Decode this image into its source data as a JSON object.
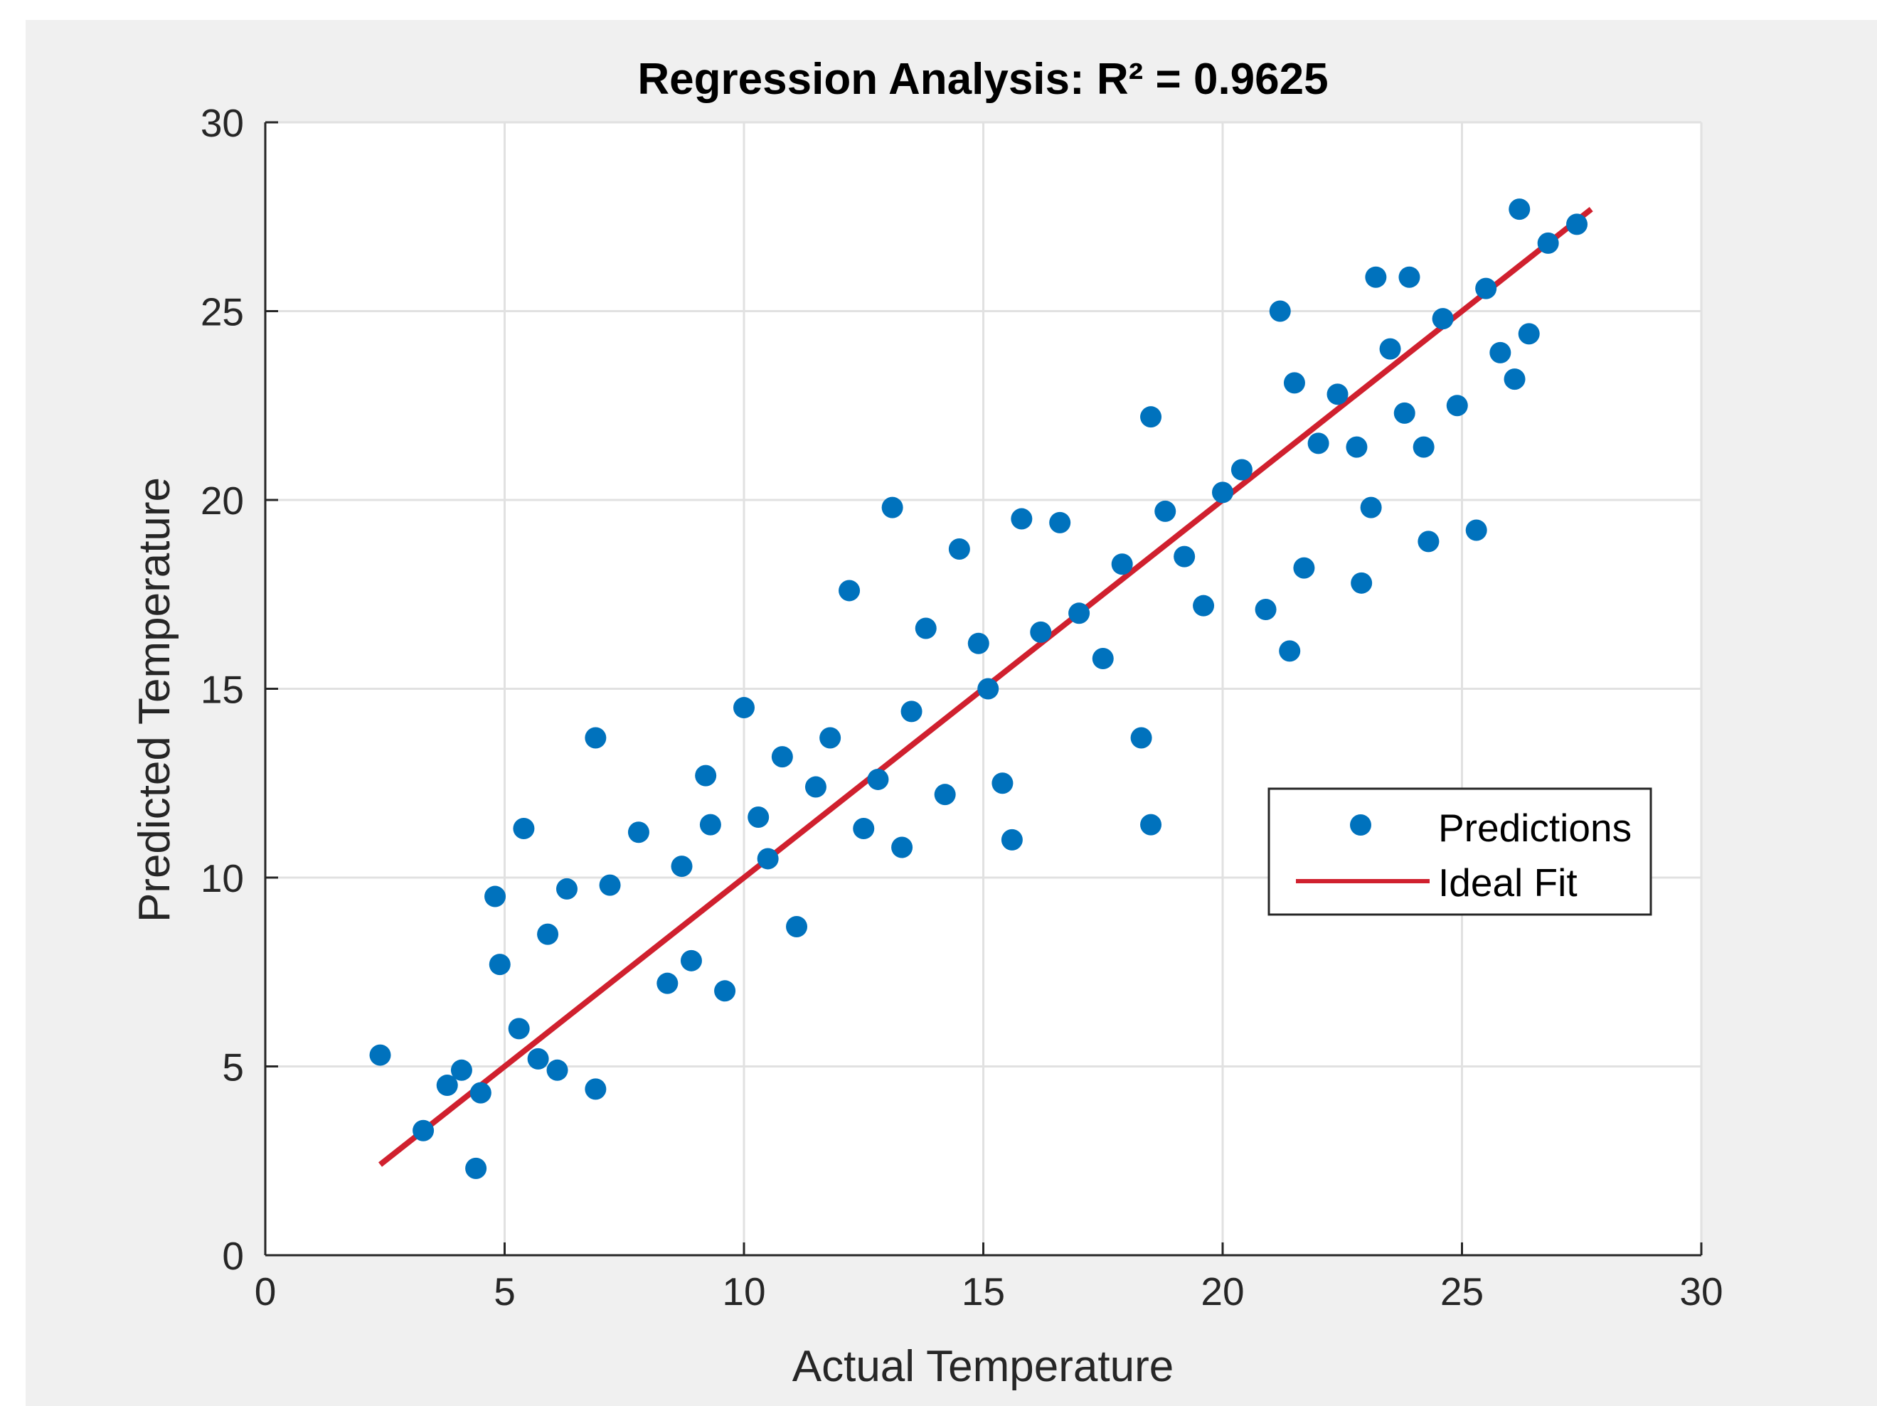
{
  "chart_data": {
    "type": "scatter",
    "title": "Regression Analysis: R² = 0.9625",
    "xlabel": "Actual Temperature",
    "ylabel": "Predicted Temperature",
    "xlim": [
      0,
      30
    ],
    "ylim": [
      0,
      30
    ],
    "xticks": [
      "0",
      "5",
      "10",
      "15",
      "20",
      "25",
      "30"
    ],
    "yticks": [
      "0",
      "5",
      "10",
      "15",
      "20",
      "25",
      "30"
    ],
    "grid": true,
    "legend_position": "center-right",
    "colors": {
      "predictions": "#0072BD",
      "ideal_fit": "#D0202E",
      "grid": "#E1E1E1",
      "axis": "#262626",
      "figure_bg": "#F0F0F0",
      "axes_bg": "#FFFFFF"
    },
    "series": [
      {
        "name": "Predictions",
        "kind": "scatter",
        "points": [
          [
            2.4,
            5.3
          ],
          [
            3.3,
            3.3
          ],
          [
            4.4,
            2.3
          ],
          [
            3.8,
            4.5
          ],
          [
            4.1,
            4.9
          ],
          [
            4.5,
            4.3
          ],
          [
            4.8,
            9.5
          ],
          [
            4.9,
            7.7
          ],
          [
            5.3,
            6.0
          ],
          [
            5.4,
            11.3
          ],
          [
            5.7,
            5.2
          ],
          [
            5.9,
            8.5
          ],
          [
            6.1,
            4.9
          ],
          [
            6.3,
            9.7
          ],
          [
            6.9,
            13.7
          ],
          [
            6.9,
            4.4
          ],
          [
            7.2,
            9.8
          ],
          [
            7.8,
            11.2
          ],
          [
            8.4,
            7.2
          ],
          [
            8.7,
            10.3
          ],
          [
            8.9,
            7.8
          ],
          [
            9.2,
            12.7
          ],
          [
            9.3,
            11.4
          ],
          [
            9.6,
            7.0
          ],
          [
            10.0,
            14.5
          ],
          [
            10.3,
            11.6
          ],
          [
            10.5,
            10.5
          ],
          [
            10.8,
            13.2
          ],
          [
            11.1,
            8.7
          ],
          [
            11.5,
            12.4
          ],
          [
            11.8,
            13.7
          ],
          [
            12.2,
            17.6
          ],
          [
            12.5,
            11.3
          ],
          [
            12.8,
            12.6
          ],
          [
            13.1,
            19.8
          ],
          [
            13.3,
            10.8
          ],
          [
            13.5,
            14.4
          ],
          [
            13.8,
            16.6
          ],
          [
            14.2,
            12.2
          ],
          [
            14.5,
            18.7
          ],
          [
            14.9,
            16.2
          ],
          [
            15.1,
            15.0
          ],
          [
            15.4,
            12.5
          ],
          [
            15.6,
            11.0
          ],
          [
            15.8,
            19.5
          ],
          [
            16.2,
            16.5
          ],
          [
            16.6,
            19.4
          ],
          [
            17.0,
            17.0
          ],
          [
            17.5,
            15.8
          ],
          [
            17.9,
            18.3
          ],
          [
            18.3,
            13.7
          ],
          [
            18.5,
            11.4
          ],
          [
            18.5,
            22.2
          ],
          [
            18.8,
            19.7
          ],
          [
            19.2,
            18.5
          ],
          [
            19.6,
            17.2
          ],
          [
            20.0,
            20.2
          ],
          [
            20.4,
            20.8
          ],
          [
            20.9,
            17.1
          ],
          [
            21.2,
            25.0
          ],
          [
            21.4,
            16.0
          ],
          [
            21.5,
            23.1
          ],
          [
            21.7,
            18.2
          ],
          [
            22.0,
            21.5
          ],
          [
            22.4,
            22.8
          ],
          [
            22.8,
            21.4
          ],
          [
            22.9,
            17.8
          ],
          [
            23.1,
            19.8
          ],
          [
            23.2,
            25.9
          ],
          [
            23.5,
            24.0
          ],
          [
            23.8,
            22.3
          ],
          [
            23.9,
            25.9
          ],
          [
            24.2,
            21.4
          ],
          [
            24.3,
            18.9
          ],
          [
            24.6,
            24.8
          ],
          [
            24.9,
            22.5
          ],
          [
            25.3,
            19.2
          ],
          [
            25.5,
            25.6
          ],
          [
            25.8,
            23.9
          ],
          [
            26.1,
            23.2
          ],
          [
            26.2,
            27.7
          ],
          [
            26.4,
            24.4
          ],
          [
            26.8,
            26.8
          ],
          [
            27.4,
            27.3
          ]
        ]
      },
      {
        "name": "Ideal Fit",
        "kind": "line",
        "x": [
          2.4,
          27.7
        ],
        "y": [
          2.4,
          27.7
        ]
      }
    ]
  }
}
